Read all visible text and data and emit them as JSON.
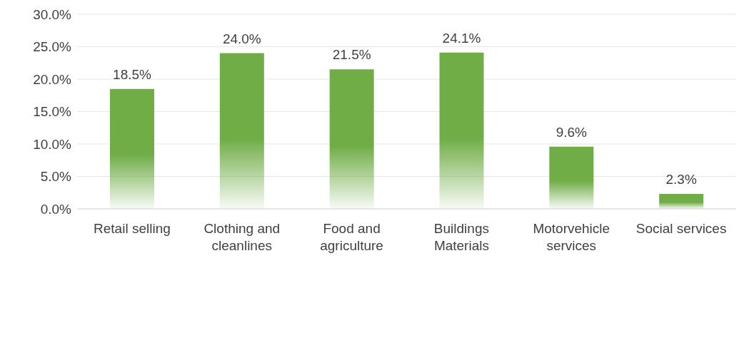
{
  "chart_data": {
    "type": "bar",
    "categories": [
      "Retail selling",
      "Clothing and cleanlines",
      "Food and agriculture",
      "Buildings Materials",
      "Motorvehicle services",
      "Social services"
    ],
    "values": [
      18.5,
      24.0,
      21.5,
      24.1,
      9.6,
      2.3
    ],
    "value_labels": [
      "18.5%",
      "24.0%",
      "21.5%",
      "24.1%",
      "9.6%",
      "2.3%"
    ],
    "color": "#70ad47",
    "ylim": [
      0,
      30
    ],
    "yticks": [
      {
        "value": 0,
        "label": "0.0%"
      },
      {
        "value": 5,
        "label": "5.0%"
      },
      {
        "value": 10,
        "label": "10.0%"
      },
      {
        "value": 15,
        "label": "15.0%"
      },
      {
        "value": 20,
        "label": "20.0%"
      },
      {
        "value": 25,
        "label": "25.0%"
      },
      {
        "value": 30,
        "label": "30.0%"
      }
    ],
    "grid": "y",
    "legend": false
  }
}
